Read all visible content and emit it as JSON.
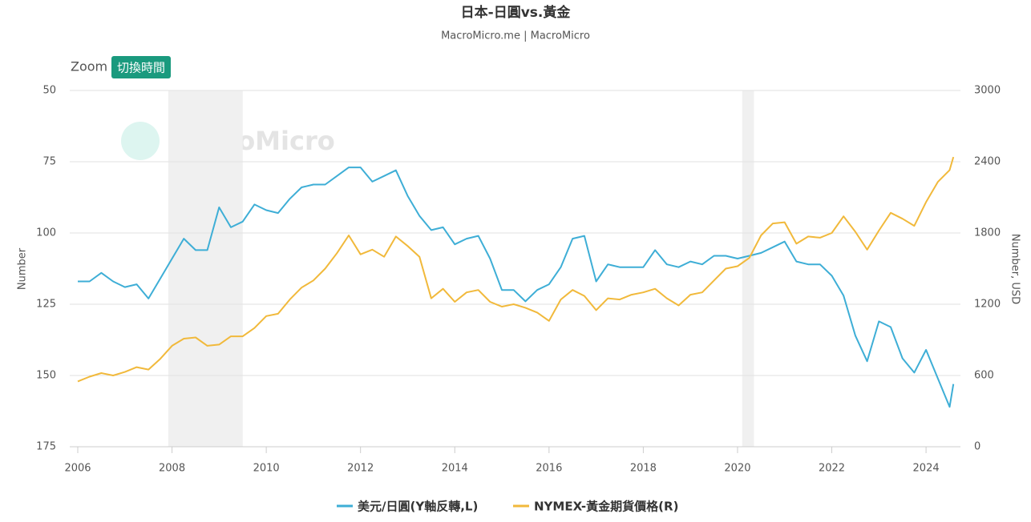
{
  "chart_data": {
    "type": "line",
    "title": "日本-日圓vs.黃金",
    "subtitle": "MacroMicro.me | MacroMicro",
    "zoom_label": "Zoom",
    "zoom_button": "切換時間",
    "watermark": "MacroMicro",
    "y_label": "Number",
    "y2_label": "Number, USD",
    "y_reversed": true,
    "grid": true,
    "legend": "bottom",
    "xlim": [
      2005.83,
      2024.73
    ],
    "xticks": [
      2006,
      2008,
      2010,
      2012,
      2014,
      2016,
      2018,
      2020,
      2022,
      2024
    ],
    "ylim": [
      50,
      175
    ],
    "yticks": [
      50,
      75,
      100,
      125,
      150,
      175
    ],
    "y2lim": [
      0,
      3000
    ],
    "y2ticks": [
      0,
      600,
      1200,
      1800,
      2400,
      3000
    ],
    "bands": [
      [
        2007.92,
        2009.5
      ],
      [
        2020.1,
        2020.35
      ]
    ],
    "x": [
      2006,
      2006.25,
      2006.5,
      2006.75,
      2007,
      2007.25,
      2007.5,
      2007.75,
      2008,
      2008.25,
      2008.5,
      2008.75,
      2009,
      2009.25,
      2009.5,
      2009.75,
      2010,
      2010.25,
      2010.5,
      2010.75,
      2011,
      2011.25,
      2011.5,
      2011.75,
      2012,
      2012.25,
      2012.5,
      2012.75,
      2013,
      2013.25,
      2013.5,
      2013.75,
      2014,
      2014.25,
      2014.5,
      2014.75,
      2015,
      2015.25,
      2015.5,
      2015.75,
      2016,
      2016.25,
      2016.5,
      2016.75,
      2017,
      2017.25,
      2017.5,
      2017.75,
      2018,
      2018.25,
      2018.5,
      2018.75,
      2019,
      2019.25,
      2019.5,
      2019.75,
      2020,
      2020.25,
      2020.5,
      2020.75,
      2021,
      2021.25,
      2021.5,
      2021.75,
      2022,
      2022.25,
      2022.5,
      2022.75,
      2023,
      2023.25,
      2023.5,
      2023.75,
      2024,
      2024.25,
      2024.5,
      2024.58
    ],
    "series": [
      {
        "name": "美元/日圓(Y軸反轉,L)",
        "color": "#3eaed6",
        "axis": "y",
        "values": [
          117,
          117,
          114,
          117,
          119,
          118,
          123,
          116,
          109,
          102,
          106,
          106,
          91,
          98,
          96,
          90,
          92,
          93,
          88,
          84,
          83,
          83,
          80,
          77,
          77,
          82,
          80,
          78,
          87,
          94,
          99,
          98,
          104,
          102,
          101,
          109,
          120,
          120,
          124,
          120,
          118,
          112,
          102,
          101,
          117,
          111,
          112,
          112,
          112,
          106,
          111,
          112,
          110,
          111,
          108,
          108,
          109,
          108,
          107,
          105,
          103,
          110,
          111,
          111,
          115,
          122,
          136,
          145,
          131,
          133,
          144,
          149,
          141,
          151,
          161,
          153
        ]
      },
      {
        "name": "NYMEX-黃金期貨價格(R)",
        "color": "#f1b93b",
        "axis": "y2",
        "values": [
          550,
          590,
          620,
          600,
          630,
          670,
          650,
          740,
          850,
          910,
          920,
          850,
          860,
          930,
          930,
          1000,
          1100,
          1120,
          1240,
          1340,
          1400,
          1500,
          1630,
          1780,
          1620,
          1660,
          1600,
          1770,
          1690,
          1600,
          1250,
          1330,
          1220,
          1300,
          1320,
          1220,
          1180,
          1200,
          1170,
          1130,
          1060,
          1240,
          1320,
          1270,
          1150,
          1250,
          1240,
          1280,
          1300,
          1330,
          1250,
          1190,
          1280,
          1300,
          1400,
          1500,
          1520,
          1590,
          1780,
          1880,
          1890,
          1710,
          1770,
          1760,
          1800,
          1940,
          1810,
          1660,
          1820,
          1970,
          1920,
          1860,
          2060,
          2230,
          2330,
          2440
        ]
      }
    ]
  }
}
